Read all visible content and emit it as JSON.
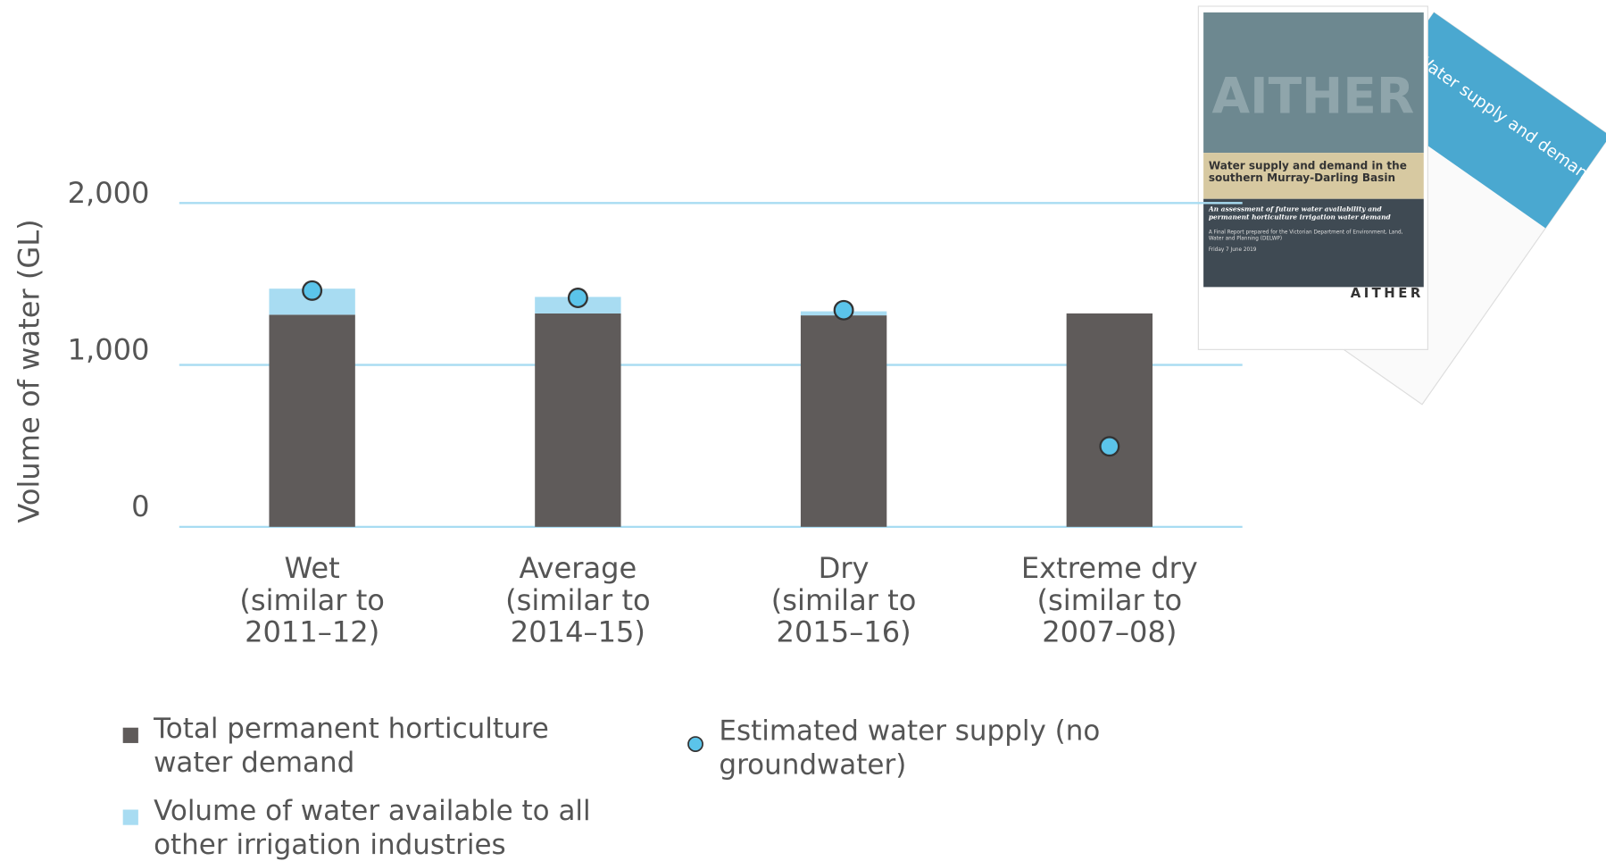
{
  "chart_data": {
    "type": "bar",
    "stacked": true,
    "y_label": "Volume of water (GL)",
    "categories": [
      "Wet\n(similar to\n2011–12)",
      "Average\n(similar to\n2014–15)",
      "Dry\n(similar to\n2015–16)",
      "Extreme dry\n(similar to\n2007–08)"
    ],
    "series": [
      {
        "name": "Total permanent horticulture\nwater demand",
        "color": "#5f5b5a",
        "type": "bar",
        "values": [
          1310,
          1318,
          1306,
          1318
        ]
      },
      {
        "name": "Volume of water available to all\nother irrigation industries",
        "color": "#a8dcf2",
        "type": "bar",
        "values": [
          161,
          102,
          25,
          0
        ]
      },
      {
        "name": "Estimated water supply (no\ngroundwater)",
        "color": "#5bc4ea",
        "type": "dot",
        "values": [
          1459,
          1414,
          1338,
          497
        ]
      }
    ],
    "ylim": [
      0,
      2000
    ],
    "yticks": [
      {
        "value": 0,
        "label": "0"
      },
      {
        "value": 1000,
        "label": "1,000"
      },
      {
        "value": 2000,
        "label": "2,000"
      }
    ],
    "grid": true
  },
  "inset": {
    "cover_watermark": "AITHER",
    "cover_title": "Water supply and demand in the southern Murray-Darling Basin",
    "cover_subtitle": "An assessment of future water availability and permanent horticulture irrigation water demand",
    "cover_note": "A Final Report prepared for the Victorian Department of Environment, Land, Water and Planning (DELWP)",
    "cover_date": "Friday 7 June 2019",
    "cover_brand": "AITHER",
    "brochure_title": "Water supply and demand"
  }
}
